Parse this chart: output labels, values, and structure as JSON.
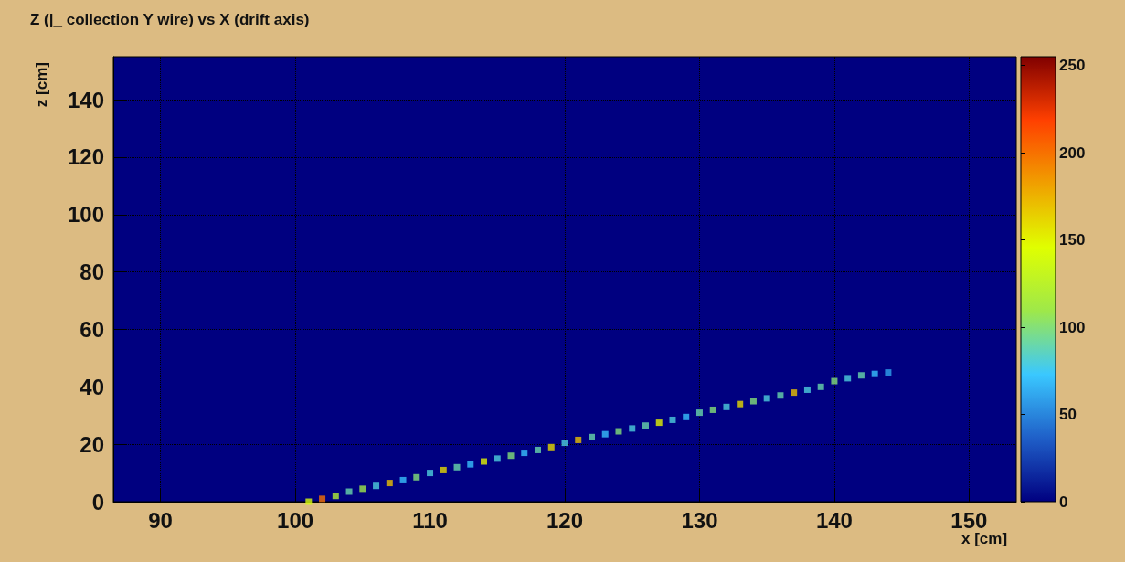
{
  "chart_data": {
    "type": "scatter",
    "title": "Z (|_ collection Y wire) vs X (drift axis)",
    "xlabel": "x [cm]",
    "ylabel": "z [cm]",
    "clabel": null,
    "x": [
      101,
      102,
      103,
      104,
      105,
      106,
      107,
      108,
      109,
      110,
      111,
      112,
      113,
      114,
      115,
      116,
      117,
      118,
      119,
      120,
      121,
      122,
      123,
      124,
      125,
      126,
      127,
      128,
      129,
      130,
      131,
      132,
      133,
      134,
      135,
      136,
      137,
      138,
      139,
      140,
      141,
      142,
      143,
      144
    ],
    "values": [
      0,
      1,
      2,
      3.5,
      4.5,
      5.5,
      6.5,
      7.5,
      8.5,
      10,
      11,
      12,
      13,
      14,
      15,
      16,
      17,
      18,
      19,
      20.5,
      21.5,
      22.5,
      23.5,
      24.5,
      25.5,
      26.5,
      27.5,
      28.5,
      29.5,
      31,
      32,
      33,
      34,
      35,
      36,
      37,
      38,
      39,
      40,
      42,
      43,
      44,
      44.5,
      45
    ],
    "cvalues": [
      140,
      200,
      120,
      90,
      110,
      80,
      170,
      70,
      100,
      80,
      160,
      90,
      70,
      150,
      80,
      100,
      70,
      90,
      160,
      80,
      170,
      90,
      70,
      100,
      80,
      90,
      150,
      80,
      70,
      90,
      100,
      80,
      160,
      100,
      80,
      90,
      170,
      80,
      90,
      100,
      80,
      90,
      70,
      60
    ],
    "color": null,
    "marker": "square",
    "xlim": [
      86.5,
      153.5
    ],
    "xticks": [
      90,
      100,
      110,
      120,
      130,
      140,
      150
    ],
    "ylim": [
      0,
      155
    ],
    "yticks": [
      0,
      20,
      40,
      60,
      80,
      100,
      120,
      140
    ],
    "clim": [
      0,
      255
    ],
    "cticks": [
      0,
      50,
      100,
      150,
      200,
      250
    ],
    "grid": true
  }
}
